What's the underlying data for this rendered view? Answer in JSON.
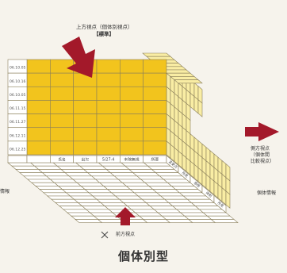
{
  "views": {
    "top_view": "上方視点（個体別視点）",
    "top_view_tag": "【標準】",
    "front_view": "前方視点",
    "side_view_line1": "側方視点",
    "side_view_line2": "（個体間",
    "side_view_line3": "比較視点）",
    "left_label": "情報",
    "right_label": "個体情報"
  },
  "row_labels": [
    "06.10.05",
    "06.10.16",
    "06.10.05",
    "06.11.15",
    "06.11.27",
    "06.12.11",
    "06.12.25"
  ],
  "column_labels": [
    "",
    "氏名",
    "出欠",
    "5/27-4",
    "本院無視",
    "所要"
  ],
  "side_labels": [
    "変更点",
    "所見",
    "感想",
    "体制",
    "所見"
  ],
  "title": "個体別型",
  "colors": {
    "yellow": "#f2c41d",
    "pale_yellow": "#f9eda4",
    "arrow_red": "#a3192a",
    "grid_line": "#8a7f5a"
  }
}
